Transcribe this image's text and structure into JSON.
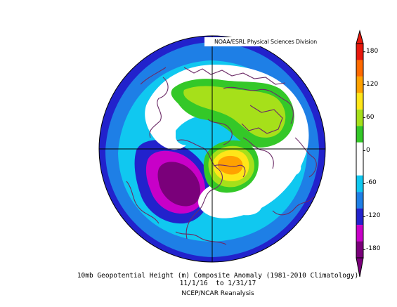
{
  "credit": "NOAA/ESRL Physical Sciences Division",
  "caption": {
    "line1": "10mb Geopotential Height (m) Composite Anomaly (1981-2010 Climatology)",
    "line2": "11/1/16  to 1/31/17",
    "line3": "NCEP/NCAR Reanalysis"
  },
  "colorbar": {
    "bins": [
      {
        "color": "#7a007a"
      },
      {
        "color": "#c800c8"
      },
      {
        "color": "#2222cc"
      },
      {
        "color": "#1e7fe6"
      },
      {
        "color": "#10c8f0"
      },
      {
        "color": "#ffffff"
      },
      {
        "color": "#ffffff"
      },
      {
        "color": "#34c828"
      },
      {
        "color": "#a6e01a"
      },
      {
        "color": "#ffe619"
      },
      {
        "color": "#ffa200"
      },
      {
        "color": "#ff6a00"
      },
      {
        "color": "#e8180c"
      }
    ],
    "tick_labels": [
      "180",
      "120",
      "60",
      "0",
      "-60",
      "-120",
      "-180"
    ]
  },
  "colors": {
    "coast": "#6b2a66",
    "frame": "#000000"
  }
}
